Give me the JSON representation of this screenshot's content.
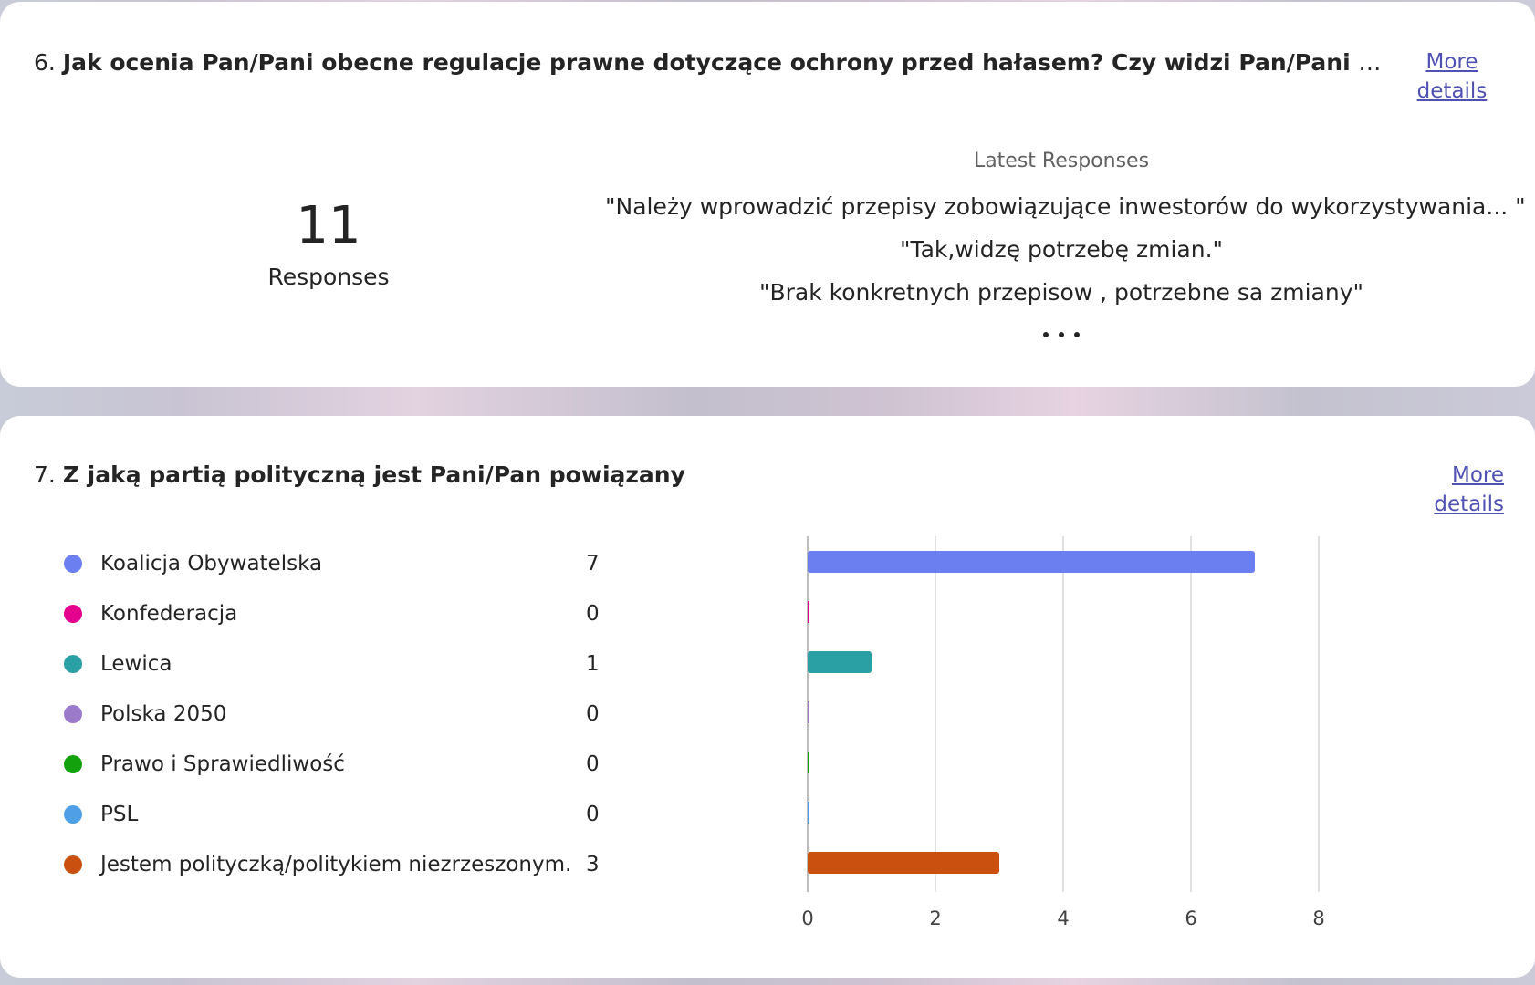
{
  "q6": {
    "number": "6.",
    "title": "Jak ocenia Pan/Pani obecne regulacje prawne dotyczące ochrony przed hałasem? Czy widzi Pan/Pani potrzebę i",
    "more_details": "More details",
    "response_count": "11",
    "response_label": "Responses",
    "latest_title": "Latest Responses",
    "latest_responses": [
      "\"Należy wprowadzić przepisy zobowiązujące inwestorów do wykorzystywania... \"",
      "\"Tak,widzę potrzebę zmian.\"",
      "\"Brak konkretnych przepisow , potrzebne sa zmiany\""
    ]
  },
  "q7": {
    "number": "7.",
    "title": "Z jaką partią polityczną jest Pani/Pan powiązany",
    "more_details": "More details"
  },
  "chart_data": {
    "type": "bar",
    "orientation": "horizontal",
    "categories": [
      "Koalicja Obywatelska",
      "Konfederacja",
      "Lewica",
      "Polska 2050",
      "Prawo i Sprawiedliwość",
      "PSL",
      "Jestem polityczką/politykiem niezrzeszonym."
    ],
    "values": [
      7,
      0,
      1,
      0,
      0,
      0,
      3
    ],
    "colors": [
      "#6b7ff0",
      "#e3008c",
      "#2aa0a4",
      "#9b7ac9",
      "#13a10e",
      "#4f9fe6",
      "#ca5010"
    ],
    "xlim": [
      0,
      10
    ],
    "xticks": [
      0,
      2,
      4,
      6,
      8
    ],
    "grid": true,
    "legend_position": "left"
  }
}
